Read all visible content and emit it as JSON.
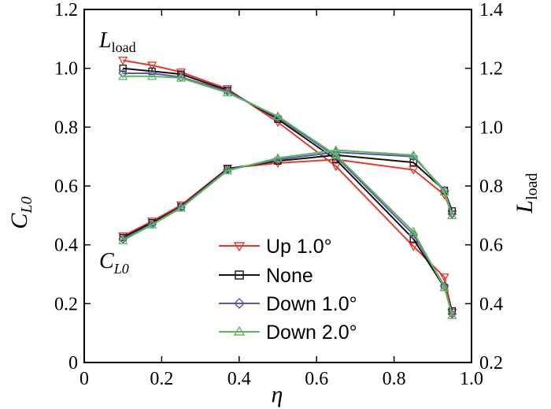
{
  "chart_data": {
    "type": "line",
    "title": "",
    "xlabel": "η",
    "ylabel_left": {
      "main": "C",
      "sub": "L0"
    },
    "ylabel_right": {
      "main": "L",
      "sub": "load"
    },
    "xlim": [
      0,
      1.0
    ],
    "ylim_left": [
      0,
      1.2
    ],
    "ylim_right": [
      0.2,
      1.4
    ],
    "x_ticks": [
      "0",
      "0.2",
      "0.4",
      "0.6",
      "0.8",
      "1.0"
    ],
    "y_left_ticks": [
      "0",
      "0.2",
      "0.4",
      "0.6",
      "0.8",
      "1.0",
      "1.2"
    ],
    "y_right_ticks": [
      "0.2",
      "0.4",
      "0.6",
      "0.8",
      "1.0",
      "1.2",
      "1.4"
    ],
    "annotations": [
      {
        "main": "L",
        "sub": "load",
        "near": "upper-left curves"
      },
      {
        "main": "C",
        "sub": "L0",
        "near": "lower-left curves"
      }
    ],
    "legend_position": "bottom-center",
    "x": [
      0.1,
      0.175,
      0.25,
      0.37,
      0.5,
      0.65,
      0.85,
      0.93,
      0.95
    ],
    "series": [
      {
        "name": "Up 1.0°",
        "color": "#e8392c",
        "marker": "triangle-down",
        "cl0": [
          0.43,
          0.48,
          0.535,
          0.66,
          0.678,
          0.69,
          0.655,
          0.57,
          0.505
        ],
        "lload": [
          1.227,
          1.21,
          1.187,
          1.13,
          1.017,
          0.867,
          0.595,
          0.49,
          0.37
        ]
      },
      {
        "name": "None",
        "color": "#111111",
        "marker": "square",
        "cl0": [
          0.425,
          0.475,
          0.53,
          0.658,
          0.685,
          0.705,
          0.68,
          0.585,
          0.515
        ],
        "lload": [
          1.2,
          1.19,
          1.18,
          1.125,
          1.027,
          0.89,
          0.62,
          0.455,
          0.375
        ]
      },
      {
        "name": "Down 1.0°",
        "color": "#5a5aa8",
        "marker": "diamond",
        "cl0": [
          0.42,
          0.47,
          0.528,
          0.655,
          0.69,
          0.715,
          0.7,
          0.585,
          0.505
        ],
        "lload": [
          1.183,
          1.183,
          1.17,
          1.122,
          1.033,
          0.9,
          0.635,
          0.46,
          0.365
        ]
      },
      {
        "name": "Down 2.0°",
        "color": "#5cb85c",
        "marker": "triangle-up",
        "cl0": [
          0.415,
          0.468,
          0.525,
          0.652,
          0.695,
          0.722,
          0.705,
          0.58,
          0.5
        ],
        "lload": [
          1.173,
          1.173,
          1.167,
          1.117,
          1.037,
          0.905,
          0.645,
          0.455,
          0.36
        ]
      }
    ]
  }
}
